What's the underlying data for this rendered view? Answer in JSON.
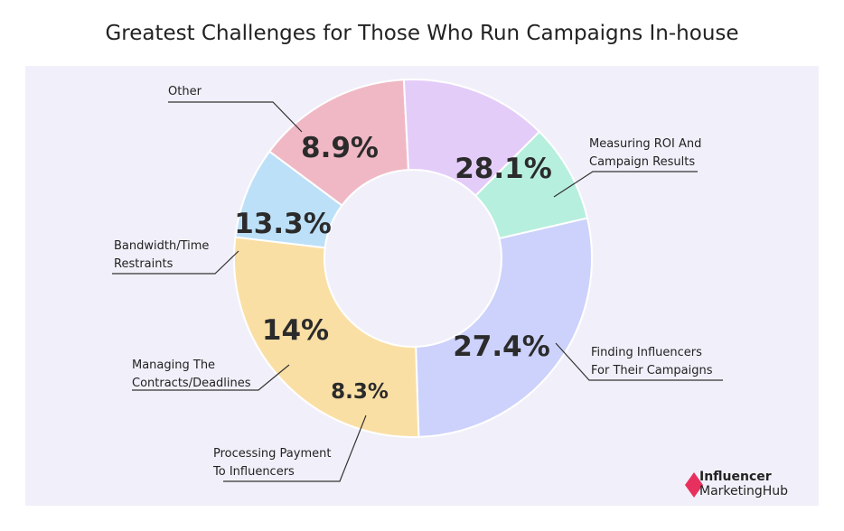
{
  "chart_data": {
    "type": "pie",
    "variant": "donut",
    "title": "Greatest Challenges for Those Who Run Campaigns In-house",
    "slices": [
      {
        "label_lines": [
          "Measuring ROI And",
          "Campaign Results"
        ],
        "value": 28.1,
        "value_label": "28.1%",
        "color": "#ccd2fb"
      },
      {
        "label_lines": [
          "Finding Influencers",
          "For Their Campaigns"
        ],
        "value": 27.4,
        "value_label": "27.4%",
        "color": "#fadfa5"
      },
      {
        "label_lines": [
          "Processing Payment",
          "To Influencers"
        ],
        "value": 8.3,
        "value_label": "8.3%",
        "color": "#bde0f9"
      },
      {
        "label_lines": [
          "Managing The",
          "Contracts/Deadlines"
        ],
        "value": 14,
        "value_label": "14%",
        "color": "#f0b8c5"
      },
      {
        "label_lines": [
          "Bandwidth/Time",
          "Restraints"
        ],
        "value": 13.3,
        "value_label": "13.3%",
        "color": "#e4ccf9"
      },
      {
        "label_lines": [
          "Other"
        ],
        "value": 8.9,
        "value_label": "8.9%",
        "color": "#b6efdd"
      }
    ]
  },
  "branding": {
    "line1": "Influencer",
    "line2": "MarketingHub",
    "color": "#e8305f"
  }
}
